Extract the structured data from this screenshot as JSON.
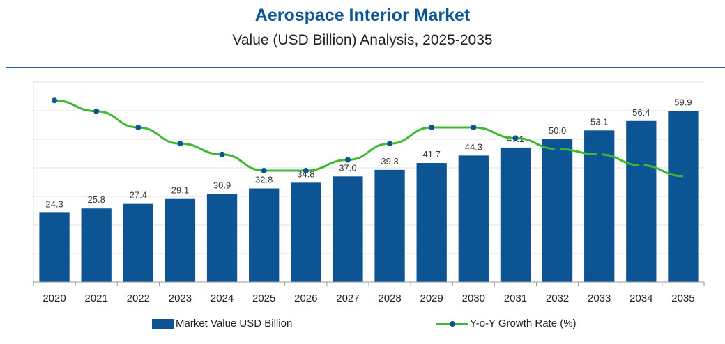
{
  "title": "Aerospace Interior Market",
  "subtitle": "Value (USD Billion) Analysis, 2025-2035",
  "colors": {
    "title": "#0d5494",
    "bar": "#0d5494",
    "line": "#3cb831",
    "dot": "#0d5494",
    "grid": "#e2e2e2",
    "rule": "#1b5fa0"
  },
  "chart_data": {
    "type": "bar",
    "categories": [
      "2020",
      "2021",
      "2022",
      "2023",
      "2024",
      "2025",
      "2026",
      "2027",
      "2028",
      "2029",
      "2030",
      "2031",
      "2032",
      "2033",
      "2034",
      "2035"
    ],
    "series": [
      {
        "name": "Market Value USD Billion",
        "type": "bar",
        "values": [
          24.3,
          25.8,
          27.4,
          29.1,
          30.9,
          32.8,
          34.8,
          37.0,
          39.3,
          41.7,
          44.3,
          47.1,
          50.0,
          53.1,
          56.4,
          59.9
        ],
        "labels": [
          "24.3",
          "25.8",
          "27.4",
          "29.1",
          "30.9",
          "32.8",
          "34.8",
          "37.0",
          "39.3",
          "41.7",
          "44.3",
          "47.1",
          "50.0",
          "53.1",
          "56.4",
          "59.9"
        ]
      },
      {
        "name": "Y-o-Y Growth Rate (%)",
        "type": "line",
        "values": [
          6.8,
          6.6,
          6.3,
          6.0,
          5.8,
          5.5,
          5.5,
          5.7,
          6.0,
          6.3,
          6.3,
          6.1,
          5.9,
          5.8,
          5.6,
          5.4
        ],
        "ylim": [
          3.5,
          7.5
        ]
      }
    ],
    "ylim": [
      0,
      70
    ],
    "grid": true,
    "legend": "bottom"
  }
}
